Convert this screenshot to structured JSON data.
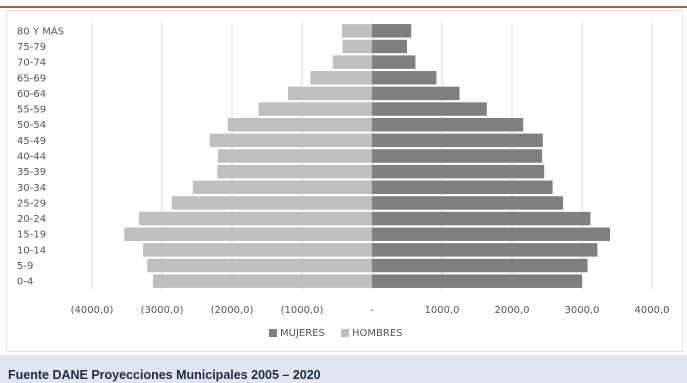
{
  "caption": "Fuente DANE Proyecciones Municipales 2005 – 2020",
  "colors": {
    "mujeres": "#7f7f7f",
    "hombres": "#bfbfbf",
    "grid": "#d9d9d9",
    "accent_rule": "#c0504d",
    "caption_bg": "#dfe6ef"
  },
  "chart_data": {
    "type": "bar",
    "orientation": "horizontal",
    "style": "population-pyramid",
    "categories": [
      "0-4",
      "5-9",
      "10-14",
      "15-19",
      "20-24",
      "25-29",
      "30-34",
      "35-39",
      "40-44",
      "45-49",
      "50-54",
      "55-59",
      "60-64",
      "65-69",
      "70-74",
      "75-79",
      "80 Y MÁS"
    ],
    "series": [
      {
        "name": "MUJERES",
        "values": [
          3000,
          3080,
          3220,
          3400,
          3120,
          2730,
          2580,
          2460,
          2430,
          2440,
          2160,
          1640,
          1250,
          920,
          620,
          500,
          560
        ]
      },
      {
        "name": "HOMBRES",
        "values": [
          -3130,
          -3210,
          -3270,
          -3540,
          -3330,
          -2860,
          -2560,
          -2210,
          -2200,
          -2320,
          -2060,
          -1620,
          -1200,
          -880,
          -560,
          -420,
          -430
        ]
      }
    ],
    "xlim": [
      -4000,
      4000
    ],
    "xticks": [
      -4000,
      -3000,
      -2000,
      -1000,
      0,
      1000,
      2000,
      3000,
      4000
    ],
    "xtick_labels": [
      "(4000,0)",
      "(3000,0)",
      "(2000,0)",
      "(1000,0)",
      "-",
      "1000,0",
      "2000,0",
      "3000,0",
      "4000,0"
    ],
    "grid": true,
    "legend_position": "bottom"
  }
}
